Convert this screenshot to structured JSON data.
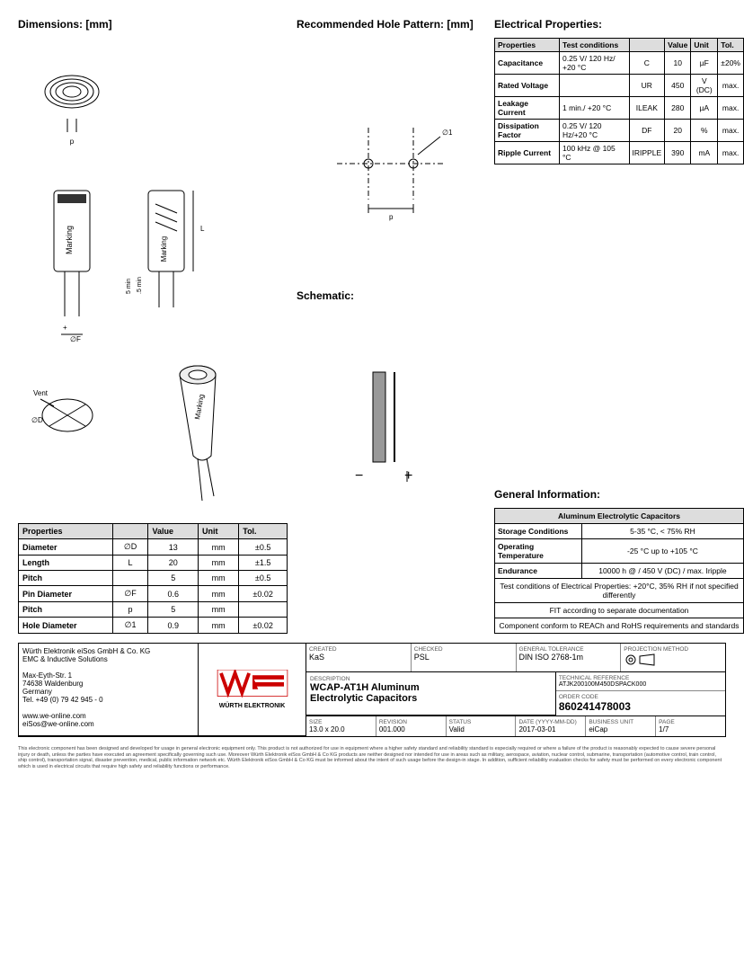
{
  "sections": {
    "dimensions": "Dimensions: [mm]",
    "hole": "Recommended Hole Pattern: [mm]",
    "electrical": "Electrical Properties:",
    "schematic": "Schematic:",
    "general": "General Information:"
  },
  "dim_table": {
    "headers": [
      "Properties",
      "",
      "Value",
      "Unit",
      "Tol."
    ],
    "rows": [
      [
        "Diameter",
        "∅D",
        "13",
        "mm",
        "±0.5"
      ],
      [
        "Length",
        "L",
        "20",
        "mm",
        "±1.5"
      ],
      [
        "Pitch",
        "",
        "5",
        "mm",
        "±0.5"
      ],
      [
        "Pin Diameter",
        "∅F",
        "0.6",
        "mm",
        "±0.02"
      ],
      [
        "Pitch",
        "p",
        "5",
        "mm",
        ""
      ],
      [
        "Hole Diameter",
        "∅1",
        "0.9",
        "mm",
        "±0.02"
      ]
    ]
  },
  "ep_table": {
    "headers": [
      "Properties",
      "Test conditions",
      "",
      "Value",
      "Unit",
      "Tol."
    ],
    "rows": [
      [
        "Capacitance",
        "0.25 V/ 120 Hz/ +20 °C",
        "C",
        "10",
        "µF",
        "±20%"
      ],
      [
        "Rated Voltage",
        "",
        "UR",
        "450",
        "V (DC)",
        "max."
      ],
      [
        "Leakage Current",
        "1 min./ +20 °C",
        "ILEAK",
        "280",
        "µA",
        "max."
      ],
      [
        "Dissipation Factor",
        "0.25 V/ 120 Hz/+20 °C",
        "DF",
        "20",
        "%",
        "max."
      ],
      [
        "Ripple Current",
        "100 kHz @ 105 °C",
        "IRIPPLE",
        "390",
        "mA",
        "max."
      ]
    ]
  },
  "gi_table": {
    "title": "Aluminum Electrolytic Capacitors",
    "rows": [
      [
        "Storage Conditions",
        "5-35 °C, < 75% RH"
      ],
      [
        "Operating Temperature",
        "-25 °C up to +105 °C"
      ],
      [
        "Endurance",
        "10000 h @ / 450 V (DC) / max. Iripple"
      ]
    ],
    "notes": [
      "Test conditions of Electrical Properties: +20°C, 35% RH if not specified differently",
      "FIT according to separate documentation",
      "Component conform to REACh and RoHS requirements and standards"
    ]
  },
  "company": {
    "name": "Würth Elektronik eiSos GmbH & Co. KG",
    "div": "EMC & Inductive Solutions",
    "addr1": "Max-Eyth-Str. 1",
    "addr2": "74638 Waldenburg",
    "addr3": "Germany",
    "tel": "Tel. +49 (0) 79 42 945 - 0",
    "web": "www.we-online.com",
    "email": "eiSos@we-online.com",
    "brand": "WÜRTH ELEKTRONIK"
  },
  "titleblock": {
    "created": "KaS",
    "checked": "PSL",
    "tolerance_label": "GENERAL TOLERANCE",
    "tolerance": "DIN ISO 2768-1m",
    "projection": "PROJECTION METHOD",
    "description_label": "DESCRIPTION",
    "description1": "WCAP-AT1H Aluminum",
    "description2": "Electrolytic Capacitors",
    "techref_label": "TECHNICAL REFERENCE",
    "techref": "ATJK200100M450DSPACK000",
    "ordercode_label": "ORDER CODE",
    "ordercode": "860241478003",
    "size_label": "SIZE",
    "size": "13.0 x 20.0",
    "revision_label": "REVISION",
    "revision": "001.000",
    "status_label": "STATUS",
    "status": "Valid",
    "date_label": "DATE (YYYY-MM-DD)",
    "date": "2017-03-01",
    "bu_label": "BUSINESS UNIT",
    "bu": "eiCap",
    "page_label": "PAGE",
    "page": "1/7",
    "created_label": "CREATED",
    "checked_label": "CHECKED"
  },
  "disclaimer": "This electronic component has been designed and developed for usage in general electronic equipment only. This product is not authorized for use in equipment where a higher safety standard and reliability standard is especially required or where a failure of the product is reasonably expected to cause severe personal injury or death, unless the parties have executed an agreement specifically governing such use. Moreover Würth Elektronik eiSos GmbH & Co KG products are neither designed nor intended for use in areas such as military, aerospace, aviation, nuclear control, submarine, transportation (automotive control, train control, ship control), transportation signal, disaster prevention, medical, public information network etc. Würth Elektronik eiSos GmbH & Co KG must be informed about the intent of such usage before the design-in stage. In addition, sufficient reliability evaluation checks for safety must be performed on every electronic component which is used in electrical circuits that require high safety and reliability functions or performance.",
  "colors": {
    "logo_red": "#cc0000",
    "header_bg": "#dddddd",
    "border": "#000000"
  },
  "svg_labels": {
    "vent": "Vent",
    "marking": "Marking",
    "d_sym": "∅D",
    "f_sym": "∅F",
    "l_sym": "L",
    "p_sym": "p",
    "spacing": "5 min",
    "spacing2": ".5 min",
    "hole_d": "∅1"
  }
}
